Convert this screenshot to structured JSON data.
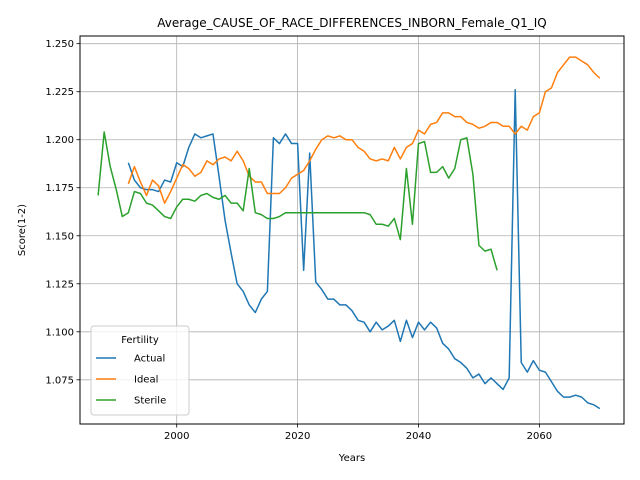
{
  "chart_data": {
    "type": "line",
    "title": "Average_CAUSE_OF_RACE_DIFFERENCES_INBORN_Female_Q1_IQ",
    "xlabel": "Years",
    "ylabel": "Score(1-2)",
    "xlim": [
      1984,
      2074
    ],
    "ylim": [
      1.052,
      1.254
    ],
    "xticks": [
      2000,
      2020,
      2040,
      2060
    ],
    "yticks": [
      1.075,
      1.1,
      1.125,
      1.15,
      1.175,
      1.2,
      1.225,
      1.25
    ],
    "xtick_labels": [
      "2000",
      "2020",
      "2040",
      "2060"
    ],
    "ytick_labels": [
      "1.075",
      "1.100",
      "1.125",
      "1.150",
      "1.175",
      "1.200",
      "1.225",
      "1.250"
    ],
    "grid": true,
    "legend": {
      "title": "Fertility",
      "placement": "lower-left"
    },
    "series": [
      {
        "name": "Actual",
        "color": "#1f77b4",
        "x": [
          1992,
          1993,
          1994,
          1995,
          1996,
          1997,
          1998,
          1999,
          2000,
          2001,
          2002,
          2003,
          2004,
          2005,
          2006,
          2007,
          2008,
          2009,
          2010,
          2011,
          2012,
          2013,
          2014,
          2015,
          2016,
          2017,
          2018,
          2019,
          2020,
          2021,
          2022,
          2023,
          2024,
          2025,
          2026,
          2027,
          2028,
          2029,
          2030,
          2031,
          2032,
          2033,
          2034,
          2035,
          2036,
          2037,
          2038,
          2039,
          2040,
          2041,
          2042,
          2043,
          2044,
          2045,
          2046,
          2047,
          2048,
          2049,
          2050,
          2051,
          2052,
          2053,
          2054,
          2055,
          2056,
          2057,
          2058,
          2059,
          2060,
          2061,
          2062,
          2063,
          2064,
          2065,
          2066,
          2067,
          2068,
          2069,
          2070
        ],
        "values": [
          1.188,
          1.179,
          1.175,
          1.174,
          1.174,
          1.173,
          1.179,
          1.178,
          1.188,
          1.186,
          1.196,
          1.203,
          1.201,
          1.202,
          1.203,
          1.181,
          1.158,
          1.141,
          1.125,
          1.121,
          1.114,
          1.11,
          1.117,
          1.121,
          1.201,
          1.198,
          1.203,
          1.198,
          1.198,
          1.132,
          1.193,
          1.126,
          1.122,
          1.117,
          1.117,
          1.114,
          1.114,
          1.111,
          1.106,
          1.105,
          1.1,
          1.105,
          1.101,
          1.103,
          1.106,
          1.095,
          1.106,
          1.097,
          1.105,
          1.101,
          1.105,
          1.102,
          1.094,
          1.091,
          1.086,
          1.084,
          1.081,
          1.076,
          1.078,
          1.073,
          1.076,
          1.073,
          1.07,
          1.076,
          1.226,
          1.084,
          1.079,
          1.085,
          1.08,
          1.079,
          1.074,
          1.069,
          1.066,
          1.066,
          1.067,
          1.066,
          1.063,
          1.062,
          1.06
        ]
      },
      {
        "name": "Ideal",
        "color": "#ff7f0e",
        "x": [
          1992,
          1993,
          1994,
          1995,
          1996,
          1997,
          1998,
          1999,
          2000,
          2001,
          2002,
          2003,
          2004,
          2005,
          2006,
          2007,
          2008,
          2009,
          2010,
          2011,
          2012,
          2013,
          2014,
          2015,
          2016,
          2017,
          2018,
          2019,
          2020,
          2021,
          2022,
          2023,
          2024,
          2025,
          2026,
          2027,
          2028,
          2029,
          2030,
          2031,
          2032,
          2033,
          2034,
          2035,
          2036,
          2037,
          2038,
          2039,
          2040,
          2041,
          2042,
          2043,
          2044,
          2045,
          2046,
          2047,
          2048,
          2049,
          2050,
          2051,
          2052,
          2053,
          2054,
          2055,
          2056,
          2057,
          2058,
          2059,
          2060,
          2061,
          2062,
          2063,
          2064,
          2065,
          2066,
          2067,
          2068,
          2069,
          2070
        ],
        "values": [
          1.177,
          1.186,
          1.178,
          1.171,
          1.179,
          1.176,
          1.167,
          1.173,
          1.18,
          1.187,
          1.185,
          1.181,
          1.183,
          1.189,
          1.187,
          1.19,
          1.191,
          1.189,
          1.194,
          1.189,
          1.181,
          1.178,
          1.178,
          1.172,
          1.172,
          1.172,
          1.175,
          1.18,
          1.182,
          1.184,
          1.189,
          1.195,
          1.2,
          1.202,
          1.201,
          1.202,
          1.2,
          1.2,
          1.196,
          1.194,
          1.19,
          1.189,
          1.19,
          1.189,
          1.196,
          1.19,
          1.196,
          1.198,
          1.205,
          1.203,
          1.208,
          1.209,
          1.214,
          1.214,
          1.212,
          1.212,
          1.209,
          1.208,
          1.206,
          1.207,
          1.209,
          1.209,
          1.207,
          1.207,
          1.203,
          1.207,
          1.205,
          1.212,
          1.214,
          1.225,
          1.227,
          1.235,
          1.239,
          1.243,
          1.243,
          1.241,
          1.239,
          1.235,
          1.232
        ]
      },
      {
        "name": "Sterile",
        "color": "#2ca02c",
        "x": [
          1987,
          1988,
          1989,
          1990,
          1991,
          1992,
          1993,
          1994,
          1995,
          1996,
          1997,
          1998,
          1999,
          2000,
          2001,
          2002,
          2003,
          2004,
          2005,
          2006,
          2007,
          2008,
          2009,
          2010,
          2011,
          2012,
          2013,
          2014,
          2015,
          2016,
          2017,
          2018,
          2019,
          2020,
          2021,
          2022,
          2023,
          2024,
          2025,
          2026,
          2027,
          2028,
          2029,
          2030,
          2031,
          2032,
          2033,
          2034,
          2035,
          2036,
          2037,
          2038,
          2039,
          2040,
          2041,
          2042,
          2043,
          2044,
          2045,
          2046,
          2047,
          2048,
          2049,
          2050,
          2051,
          2052,
          2053
        ],
        "values": [
          1.171,
          1.204,
          1.186,
          1.174,
          1.16,
          1.162,
          1.173,
          1.172,
          1.167,
          1.166,
          1.163,
          1.16,
          1.159,
          1.165,
          1.169,
          1.169,
          1.168,
          1.171,
          1.172,
          1.17,
          1.169,
          1.171,
          1.167,
          1.167,
          1.163,
          1.185,
          1.162,
          1.161,
          1.159,
          1.159,
          1.16,
          1.162,
          1.162,
          1.162,
          1.162,
          1.162,
          1.162,
          1.162,
          1.162,
          1.162,
          1.162,
          1.162,
          1.162,
          1.162,
          1.162,
          1.161,
          1.156,
          1.156,
          1.155,
          1.159,
          1.148,
          1.185,
          1.156,
          1.198,
          1.199,
          1.183,
          1.183,
          1.186,
          1.18,
          1.185,
          1.2,
          1.201,
          1.182,
          1.145,
          1.142,
          1.143,
          1.132
        ]
      }
    ]
  }
}
